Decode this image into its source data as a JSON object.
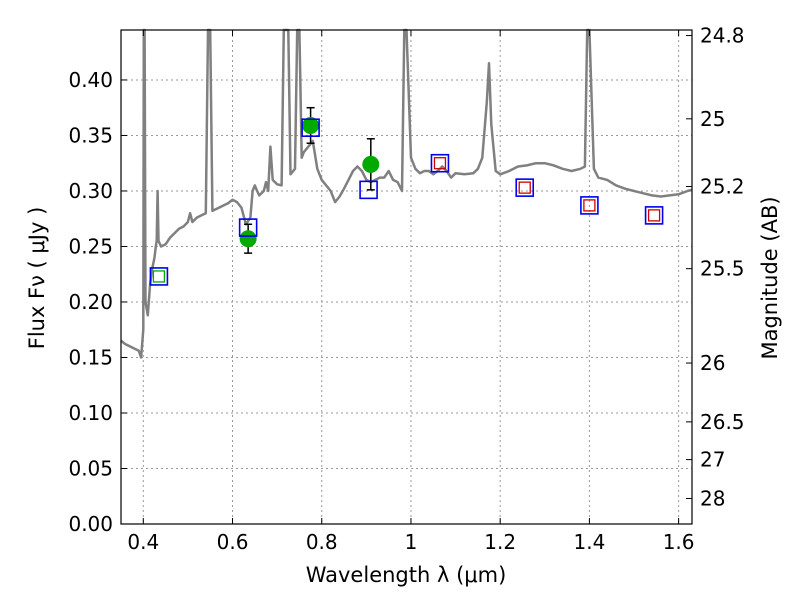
{
  "chart_data": {
    "type": "scatter",
    "xlabel": "Wavelength  λ (μm)",
    "ylabel": "Flux  Fν  ( μJy )",
    "y2label": "Magnitude (AB)",
    "xlim": [
      0.35,
      1.63
    ],
    "ylim": [
      0.0,
      0.445
    ],
    "grid": true,
    "x_ticks": [
      0.4,
      0.6,
      0.8,
      1.0,
      1.2,
      1.4,
      1.6
    ],
    "x_tick_labels": [
      "0.4",
      "0.6",
      "0.8",
      "1",
      "1.2",
      "1.4",
      "1.6"
    ],
    "y_ticks": [
      0.0,
      0.05,
      0.1,
      0.15,
      0.2,
      0.25,
      0.3,
      0.35,
      0.4
    ],
    "y_tick_labels": [
      "0.00",
      "0.05",
      "0.10",
      "0.15",
      "0.20",
      "0.25",
      "0.30",
      "0.35",
      "0.40"
    ],
    "y2_ticks": [
      {
        "label": "24.8",
        "flux": 0.44
      },
      {
        "label": "25",
        "flux": 0.365
      },
      {
        "label": "25.2",
        "flux": 0.304
      },
      {
        "label": "25.5",
        "flux": 0.23
      },
      {
        "label": "26",
        "flux": 0.145
      },
      {
        "label": "26.5",
        "flux": 0.092
      },
      {
        "label": "27",
        "flux": 0.058
      },
      {
        "label": "28",
        "flux": 0.023
      }
    ],
    "colors": {
      "model": "#808080",
      "observed": "#00aa00",
      "model_photometry": "#0000ee",
      "inner_box": "#cc0000",
      "errorbar": "#000000"
    },
    "series": [
      {
        "kind": "line",
        "points": [
          [
            0.35,
            0.165
          ],
          [
            0.36,
            0.162
          ],
          [
            0.37,
            0.16
          ],
          [
            0.38,
            0.158
          ],
          [
            0.39,
            0.156
          ],
          [
            0.395,
            0.15
          ],
          [
            0.4,
            0.175
          ],
          [
            0.401,
            0.445
          ],
          [
            0.403,
            0.445
          ],
          [
            0.405,
            0.2
          ],
          [
            0.41,
            0.188
          ],
          [
            0.415,
            0.215
          ],
          [
            0.42,
            0.23
          ],
          [
            0.425,
            0.24
          ],
          [
            0.428,
            0.25
          ],
          [
            0.43,
            0.255
          ],
          [
            0.432,
            0.3
          ],
          [
            0.434,
            0.255
          ],
          [
            0.44,
            0.25
          ],
          [
            0.45,
            0.252
          ],
          [
            0.46,
            0.258
          ],
          [
            0.47,
            0.262
          ],
          [
            0.48,
            0.266
          ],
          [
            0.49,
            0.268
          ],
          [
            0.5,
            0.272
          ],
          [
            0.505,
            0.28
          ],
          [
            0.51,
            0.272
          ],
          [
            0.52,
            0.276
          ],
          [
            0.53,
            0.278
          ],
          [
            0.54,
            0.28
          ],
          [
            0.545,
            0.445
          ],
          [
            0.55,
            0.445
          ],
          [
            0.555,
            0.282
          ],
          [
            0.56,
            0.283
          ],
          [
            0.57,
            0.285
          ],
          [
            0.58,
            0.287
          ],
          [
            0.59,
            0.289
          ],
          [
            0.6,
            0.292
          ],
          [
            0.61,
            0.29
          ],
          [
            0.62,
            0.285
          ],
          [
            0.63,
            0.27
          ],
          [
            0.64,
            0.276
          ],
          [
            0.645,
            0.3
          ],
          [
            0.65,
            0.305
          ],
          [
            0.655,
            0.3
          ],
          [
            0.66,
            0.296
          ],
          [
            0.67,
            0.3
          ],
          [
            0.675,
            0.308
          ],
          [
            0.68,
            0.3
          ],
          [
            0.685,
            0.34
          ],
          [
            0.69,
            0.31
          ],
          [
            0.7,
            0.306
          ],
          [
            0.71,
            0.305
          ],
          [
            0.715,
            0.445
          ],
          [
            0.725,
            0.445
          ],
          [
            0.73,
            0.315
          ],
          [
            0.74,
            0.32
          ],
          [
            0.745,
            0.445
          ],
          [
            0.75,
            0.445
          ],
          [
            0.755,
            0.33
          ],
          [
            0.76,
            0.335
          ],
          [
            0.77,
            0.34
          ],
          [
            0.78,
            0.345
          ],
          [
            0.79,
            0.32
          ],
          [
            0.8,
            0.31
          ],
          [
            0.81,
            0.305
          ],
          [
            0.82,
            0.3
          ],
          [
            0.83,
            0.29
          ],
          [
            0.84,
            0.295
          ],
          [
            0.85,
            0.302
          ],
          [
            0.86,
            0.31
          ],
          [
            0.87,
            0.318
          ],
          [
            0.88,
            0.322
          ],
          [
            0.89,
            0.318
          ],
          [
            0.9,
            0.31
          ],
          [
            0.91,
            0.308
          ],
          [
            0.92,
            0.31
          ],
          [
            0.93,
            0.312
          ],
          [
            0.94,
            0.312
          ],
          [
            0.95,
            0.318
          ],
          [
            0.96,
            0.31
          ],
          [
            0.97,
            0.308
          ],
          [
            0.98,
            0.3
          ],
          [
            0.985,
            0.445
          ],
          [
            0.99,
            0.445
          ],
          [
            1.0,
            0.33
          ],
          [
            1.01,
            0.32
          ],
          [
            1.02,
            0.316
          ],
          [
            1.03,
            0.318
          ],
          [
            1.04,
            0.318
          ],
          [
            1.05,
            0.315
          ],
          [
            1.06,
            0.318
          ],
          [
            1.07,
            0.322
          ],
          [
            1.08,
            0.318
          ],
          [
            1.09,
            0.312
          ],
          [
            1.1,
            0.316
          ],
          [
            1.12,
            0.315
          ],
          [
            1.14,
            0.316
          ],
          [
            1.15,
            0.32
          ],
          [
            1.16,
            0.33
          ],
          [
            1.17,
            0.38
          ],
          [
            1.175,
            0.415
          ],
          [
            1.18,
            0.36
          ],
          [
            1.19,
            0.318
          ],
          [
            1.2,
            0.315
          ],
          [
            1.22,
            0.318
          ],
          [
            1.24,
            0.322
          ],
          [
            1.26,
            0.323
          ],
          [
            1.28,
            0.325
          ],
          [
            1.3,
            0.325
          ],
          [
            1.32,
            0.323
          ],
          [
            1.34,
            0.32
          ],
          [
            1.36,
            0.318
          ],
          [
            1.38,
            0.32
          ],
          [
            1.39,
            0.322
          ],
          [
            1.395,
            0.445
          ],
          [
            1.4,
            0.445
          ],
          [
            1.41,
            0.32
          ],
          [
            1.42,
            0.312
          ],
          [
            1.44,
            0.31
          ],
          [
            1.46,
            0.305
          ],
          [
            1.48,
            0.302
          ],
          [
            1.5,
            0.3
          ],
          [
            1.52,
            0.298
          ],
          [
            1.54,
            0.296
          ],
          [
            1.56,
            0.295
          ],
          [
            1.58,
            0.296
          ],
          [
            1.6,
            0.297
          ],
          [
            1.62,
            0.3
          ],
          [
            1.63,
            0.301
          ]
        ]
      },
      {
        "kind": "points",
        "marker": "circle",
        "points": [
          {
            "x": 0.635,
            "y": 0.257,
            "err": 0.013
          },
          {
            "x": 0.775,
            "y": 0.359,
            "err": 0.016
          },
          {
            "x": 0.91,
            "y": 0.324,
            "err": 0.023
          }
        ]
      },
      {
        "kind": "points",
        "marker": "open-square",
        "points": [
          {
            "x": 0.435,
            "y": 0.223
          },
          {
            "x": 0.635,
            "y": 0.267
          },
          {
            "x": 0.775,
            "y": 0.357
          },
          {
            "x": 0.905,
            "y": 0.301
          },
          {
            "x": 1.065,
            "y": 0.325
          },
          {
            "x": 1.255,
            "y": 0.303
          },
          {
            "x": 1.4,
            "y": 0.287
          },
          {
            "x": 1.545,
            "y": 0.278
          }
        ]
      },
      {
        "kind": "points",
        "marker": "small-open-square",
        "points": [
          {
            "x": 0.435,
            "y": 0.223,
            "color": "#00aa00"
          },
          {
            "x": 1.065,
            "y": 0.325,
            "color": "#cc0000"
          },
          {
            "x": 1.255,
            "y": 0.303,
            "color": "#cc0000"
          },
          {
            "x": 1.4,
            "y": 0.287,
            "color": "#cc0000"
          },
          {
            "x": 1.545,
            "y": 0.278,
            "color": "#cc0000"
          }
        ]
      }
    ]
  }
}
